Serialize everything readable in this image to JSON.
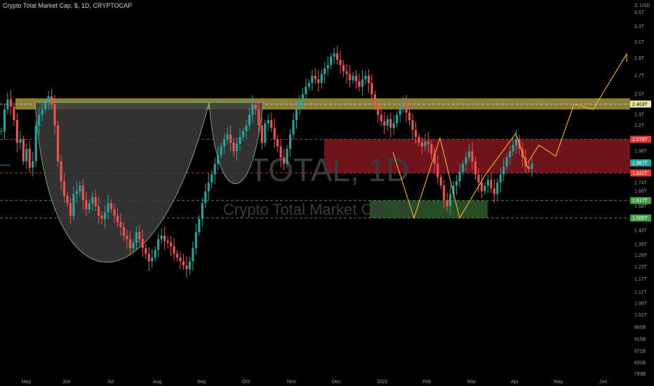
{
  "header": {
    "symbol_line": "Crypto Total Market Cap, $, 1D, CRYPTOCAP"
  },
  "watermark": {
    "ticker": "TOTAL, 1D",
    "name": "Crypto Total Market Cap, $"
  },
  "colors": {
    "up": "#26a69a",
    "down": "#ef5350",
    "projection": "#f0b030",
    "resistance_zone": "#b9a94a",
    "red_zone": "#8a1a22",
    "green_zone": "#2f5a2c",
    "cup_fill": "#3b3b3b",
    "blue_line": "#1e88e5"
  },
  "chart_data": {
    "type": "candlestick",
    "title": "Crypto Total Market Cap, $, 1D, CRYPTOCAP",
    "y_scale": "log",
    "currency_label": "USD",
    "x_ticks": [
      "May",
      "Jun",
      "Jul",
      "Aug",
      "Sep",
      "Oct",
      "Nov",
      "Dec",
      "2022",
      "Feb",
      "Mar",
      "Apr",
      "May",
      "Jun"
    ],
    "y_ticks": [
      "3.",
      "3.5T",
      "3.3T",
      "3.1T",
      "2.9T",
      "2.7T",
      "2.5T",
      "2.3T",
      "2.2T",
      "1.98T",
      "1.74T",
      "1.68T",
      "1.58T",
      "1.43T",
      "1.35T",
      "1.29T",
      "1.23T",
      "1.17T",
      "1.11T",
      "1.06T",
      "1.01T",
      "960B",
      "915B",
      "871B",
      "831B",
      "793B"
    ],
    "price_labels": [
      {
        "text": "2.403T",
        "value": 2.403,
        "color": "#f0e6a0",
        "text_color": "#000000"
      },
      {
        "text": "2.079T",
        "value": 2.079,
        "color": "#e53935",
        "text_color": "#ffffff"
      },
      {
        "text": "1.887T",
        "value": 1.887,
        "color": "#26a69a",
        "text_color": "#ffffff"
      },
      {
        "text": "1.811T",
        "value": 1.811,
        "color": "#e53935",
        "text_color": "#ffffff"
      },
      {
        "text": "1.617T",
        "value": 1.617,
        "color": "#43a047",
        "text_color": "#ffffff"
      },
      {
        "text": "1.505T",
        "value": 1.505,
        "color": "#43a047",
        "text_color": "#ffffff"
      }
    ],
    "ohlc_path": [
      [
        2.15,
        2.35,
        2.45,
        2.38,
        2.25,
        2.05,
        2.08,
        1.9,
        2.0,
        1.85,
        1.9,
        2.2
      ],
      [
        2.3,
        2.35,
        2.42,
        2.48,
        2.4,
        2.2,
        1.9,
        1.75,
        1.65,
        1.6,
        1.52,
        1.66
      ],
      [
        1.68,
        1.72,
        1.62,
        1.56,
        1.6,
        1.64,
        1.58,
        1.52,
        1.5,
        1.54,
        1.6,
        1.56
      ],
      [
        1.52,
        1.48,
        1.45,
        1.4,
        1.38,
        1.33,
        1.36,
        1.42,
        1.38,
        1.33,
        1.3,
        1.26
      ],
      [
        1.28,
        1.32,
        1.38,
        1.4,
        1.37,
        1.36,
        1.34,
        1.3,
        1.28,
        1.26,
        1.24,
        1.22
      ],
      [
        1.26,
        1.33,
        1.42,
        1.5,
        1.6,
        1.68,
        1.74,
        1.8,
        1.88,
        1.95,
        2.02,
        2.08
      ],
      [
        2.12,
        2.05,
        1.98,
        2.04,
        2.1,
        2.15,
        2.2,
        2.3,
        2.4,
        2.35,
        2.2,
        2.05
      ],
      [
        2.22,
        2.25,
        2.18,
        2.08,
        2.02,
        1.93,
        1.88,
        2.0,
        2.12,
        2.25,
        2.35,
        2.45
      ],
      [
        2.5,
        2.58,
        2.62,
        2.7,
        2.66,
        2.62,
        2.72,
        2.78,
        2.82,
        2.92,
        2.96,
        2.88
      ],
      [
        2.82,
        2.75,
        2.72,
        2.65,
        2.7,
        2.64,
        2.58,
        2.66,
        2.7,
        2.62,
        2.5,
        2.38
      ],
      [
        2.3,
        2.24,
        2.2,
        2.26,
        2.18,
        2.22,
        2.3,
        2.36,
        2.4,
        2.32,
        2.25,
        2.16
      ],
      [
        2.1,
        2.05,
        2.02,
        2.06,
        2.04,
        1.96,
        1.88,
        1.78,
        1.72,
        1.62,
        1.58,
        1.66
      ],
      [
        1.72,
        1.75,
        1.82,
        1.88,
        1.93,
        1.98,
        1.9,
        1.8,
        1.74,
        1.68,
        1.72,
        1.76
      ],
      [
        1.7,
        1.66,
        1.74,
        1.8,
        1.86,
        1.93,
        1.98,
        2.03,
        2.08,
        2.0,
        1.93,
        1.86
      ],
      [
        1.84,
        1.88
      ]
    ],
    "pattern": {
      "name": "cup and handle / W pattern with projection",
      "resistance_zone": [
        2.35,
        2.46
      ],
      "red_zone": [
        1.811,
        2.079
      ],
      "green_zone": [
        1.505,
        1.617
      ],
      "dashed_levels": [
        2.403,
        2.079,
        1.811,
        1.617,
        1.505
      ],
      "projection_points": [
        1.887,
        2.03,
        1.94,
        2.403,
        2.35,
        2.95
      ]
    }
  }
}
